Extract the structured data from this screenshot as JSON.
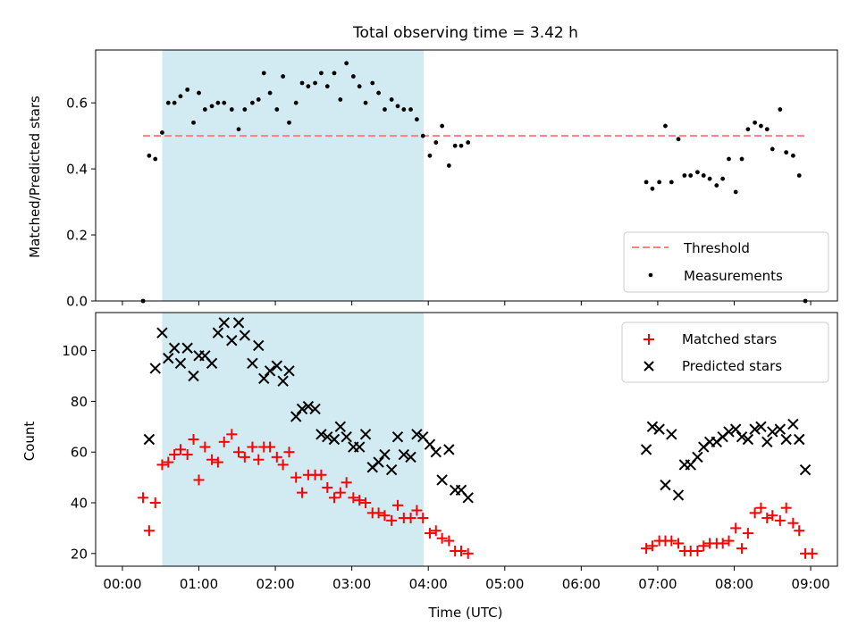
{
  "chart_data": [
    {
      "type": "scatter",
      "title": "Total observing time = 3.42 h",
      "xlabel": "",
      "ylabel": "Matched/Predicted stars",
      "xlim_hours": [
        -0.35,
        9.35
      ],
      "ylim": [
        0,
        0.76
      ],
      "yticks": [
        0.0,
        0.2,
        0.4,
        0.6
      ],
      "ytick_labels": [
        "0.0",
        "0.2",
        "0.4",
        "0.6"
      ],
      "shaded_span_hours": [
        0.52,
        3.94
      ],
      "threshold": {
        "name": "Threshold",
        "y": 0.5,
        "x_range_hours": [
          0.27,
          8.95
        ],
        "color": "#ff7f7f"
      },
      "legend": {
        "position": "lower right",
        "entries": [
          "Threshold",
          "Measurements"
        ]
      },
      "series": [
        {
          "name": "Measurements",
          "color": "#000000",
          "points": [
            [
              0.27,
              0.0
            ],
            [
              0.35,
              0.44
            ],
            [
              0.43,
              0.43
            ],
            [
              0.52,
              0.51
            ],
            [
              0.6,
              0.6
            ],
            [
              0.68,
              0.6
            ],
            [
              0.76,
              0.62
            ],
            [
              0.85,
              0.64
            ],
            [
              0.93,
              0.54
            ],
            [
              1.0,
              0.63
            ],
            [
              1.08,
              0.58
            ],
            [
              1.17,
              0.59
            ],
            [
              1.25,
              0.6
            ],
            [
              1.33,
              0.6
            ],
            [
              1.43,
              0.58
            ],
            [
              1.52,
              0.52
            ],
            [
              1.6,
              0.58
            ],
            [
              1.7,
              0.6
            ],
            [
              1.78,
              0.61
            ],
            [
              1.85,
              0.69
            ],
            [
              1.93,
              0.63
            ],
            [
              2.02,
              0.58
            ],
            [
              2.1,
              0.68
            ],
            [
              2.18,
              0.54
            ],
            [
              2.27,
              0.6
            ],
            [
              2.35,
              0.66
            ],
            [
              2.43,
              0.65
            ],
            [
              2.52,
              0.66
            ],
            [
              2.6,
              0.69
            ],
            [
              2.68,
              0.65
            ],
            [
              2.77,
              0.69
            ],
            [
              2.85,
              0.61
            ],
            [
              2.93,
              0.72
            ],
            [
              3.02,
              0.68
            ],
            [
              3.1,
              0.65
            ],
            [
              3.18,
              0.6
            ],
            [
              3.27,
              0.66
            ],
            [
              3.35,
              0.63
            ],
            [
              3.43,
              0.58
            ],
            [
              3.52,
              0.61
            ],
            [
              3.6,
              0.59
            ],
            [
              3.68,
              0.58
            ],
            [
              3.77,
              0.58
            ],
            [
              3.85,
              0.55
            ],
            [
              3.93,
              0.5
            ],
            [
              4.02,
              0.44
            ],
            [
              4.1,
              0.48
            ],
            [
              4.18,
              0.53
            ],
            [
              4.27,
              0.41
            ],
            [
              4.35,
              0.47
            ],
            [
              4.43,
              0.47
            ],
            [
              4.52,
              0.48
            ],
            [
              6.85,
              0.36
            ],
            [
              6.93,
              0.34
            ],
            [
              7.02,
              0.36
            ],
            [
              7.1,
              0.53
            ],
            [
              7.18,
              0.36
            ],
            [
              7.27,
              0.49
            ],
            [
              7.35,
              0.38
            ],
            [
              7.43,
              0.38
            ],
            [
              7.52,
              0.39
            ],
            [
              7.6,
              0.38
            ],
            [
              7.68,
              0.37
            ],
            [
              7.77,
              0.35
            ],
            [
              7.85,
              0.37
            ],
            [
              7.93,
              0.43
            ],
            [
              8.02,
              0.33
            ],
            [
              8.1,
              0.43
            ],
            [
              8.18,
              0.52
            ],
            [
              8.27,
              0.54
            ],
            [
              8.35,
              0.53
            ],
            [
              8.43,
              0.52
            ],
            [
              8.5,
              0.46
            ],
            [
              8.6,
              0.58
            ],
            [
              8.68,
              0.45
            ],
            [
              8.77,
              0.44
            ],
            [
              8.85,
              0.38
            ],
            [
              8.93,
              0.0
            ]
          ]
        }
      ]
    },
    {
      "type": "scatter",
      "title": "",
      "xlabel": "Time (UTC)",
      "ylabel": "Count",
      "xlim_hours": [
        -0.35,
        9.35
      ],
      "ylim": [
        15,
        115
      ],
      "yticks": [
        20,
        40,
        60,
        80,
        100
      ],
      "ytick_labels": [
        "20",
        "40",
        "60",
        "80",
        "100"
      ],
      "xticks_hours": [
        0,
        1,
        2,
        3,
        4,
        5,
        6,
        7,
        8,
        9
      ],
      "xtick_labels": [
        "00:00",
        "01:00",
        "02:00",
        "03:00",
        "04:00",
        "05:00",
        "06:00",
        "07:00",
        "08:00",
        "09:00"
      ],
      "shaded_span_hours": [
        0.52,
        3.94
      ],
      "legend": {
        "position": "upper right",
        "entries": [
          "Matched stars",
          "Predicted stars"
        ]
      },
      "series": [
        {
          "name": "Matched stars",
          "marker": "plus",
          "color": "#ff0000",
          "points": [
            [
              0.27,
              42
            ],
            [
              0.35,
              29
            ],
            [
              0.43,
              40
            ],
            [
              0.52,
              55
            ],
            [
              0.6,
              56
            ],
            [
              0.68,
              59
            ],
            [
              0.76,
              61
            ],
            [
              0.85,
              59
            ],
            [
              0.93,
              65
            ],
            [
              1.0,
              49
            ],
            [
              1.08,
              62
            ],
            [
              1.17,
              57
            ],
            [
              1.25,
              56
            ],
            [
              1.33,
              64
            ],
            [
              1.43,
              67
            ],
            [
              1.52,
              60
            ],
            [
              1.6,
              58
            ],
            [
              1.7,
              62
            ],
            [
              1.78,
              57
            ],
            [
              1.85,
              62
            ],
            [
              1.93,
              62
            ],
            [
              2.02,
              58
            ],
            [
              2.1,
              55
            ],
            [
              2.18,
              60
            ],
            [
              2.27,
              50
            ],
            [
              2.35,
              44
            ],
            [
              2.43,
              51
            ],
            [
              2.52,
              51
            ],
            [
              2.6,
              51
            ],
            [
              2.68,
              46
            ],
            [
              2.77,
              42
            ],
            [
              2.85,
              44
            ],
            [
              2.93,
              48
            ],
            [
              3.02,
              42
            ],
            [
              3.1,
              41
            ],
            [
              3.18,
              40
            ],
            [
              3.27,
              36
            ],
            [
              3.35,
              36
            ],
            [
              3.43,
              35
            ],
            [
              3.52,
              33
            ],
            [
              3.6,
              39
            ],
            [
              3.68,
              34
            ],
            [
              3.77,
              34
            ],
            [
              3.85,
              37
            ],
            [
              3.93,
              34
            ],
            [
              4.02,
              28
            ],
            [
              4.1,
              29
            ],
            [
              4.18,
              26
            ],
            [
              4.27,
              25
            ],
            [
              4.35,
              21
            ],
            [
              4.43,
              21
            ],
            [
              4.52,
              20
            ],
            [
              6.85,
              22
            ],
            [
              6.93,
              23
            ],
            [
              7.02,
              25
            ],
            [
              7.1,
              25
            ],
            [
              7.18,
              25
            ],
            [
              7.27,
              24
            ],
            [
              7.35,
              21
            ],
            [
              7.43,
              21
            ],
            [
              7.52,
              21
            ],
            [
              7.6,
              23
            ],
            [
              7.68,
              24
            ],
            [
              7.77,
              24
            ],
            [
              7.85,
              24
            ],
            [
              7.93,
              25
            ],
            [
              8.02,
              30
            ],
            [
              8.1,
              22
            ],
            [
              8.18,
              28
            ],
            [
              8.27,
              36
            ],
            [
              8.35,
              38
            ],
            [
              8.43,
              34
            ],
            [
              8.5,
              35
            ],
            [
              8.6,
              33
            ],
            [
              8.68,
              38
            ],
            [
              8.77,
              32
            ],
            [
              8.85,
              29
            ],
            [
              8.93,
              20
            ],
            [
              9.02,
              20
            ]
          ]
        },
        {
          "name": "Predicted stars",
          "marker": "x",
          "color": "#000000",
          "points": [
            [
              0.35,
              65
            ],
            [
              0.43,
              93
            ],
            [
              0.52,
              107
            ],
            [
              0.6,
              97
            ],
            [
              0.68,
              101
            ],
            [
              0.76,
              95
            ],
            [
              0.85,
              101
            ],
            [
              0.93,
              90
            ],
            [
              1.0,
              98
            ],
            [
              1.08,
              98
            ],
            [
              1.17,
              95
            ],
            [
              1.25,
              107
            ],
            [
              1.33,
              111
            ],
            [
              1.43,
              104
            ],
            [
              1.52,
              111
            ],
            [
              1.6,
              106
            ],
            [
              1.7,
              95
            ],
            [
              1.78,
              102
            ],
            [
              1.85,
              89
            ],
            [
              1.93,
              92
            ],
            [
              2.02,
              94
            ],
            [
              2.1,
              88
            ],
            [
              2.18,
              92
            ],
            [
              2.27,
              74
            ],
            [
              2.35,
              77
            ],
            [
              2.43,
              78
            ],
            [
              2.52,
              77
            ],
            [
              2.6,
              67
            ],
            [
              2.68,
              66
            ],
            [
              2.77,
              65
            ],
            [
              2.85,
              70
            ],
            [
              2.93,
              66
            ],
            [
              3.02,
              62
            ],
            [
              3.1,
              62
            ],
            [
              3.18,
              67
            ],
            [
              3.27,
              54
            ],
            [
              3.35,
              56
            ],
            [
              3.43,
              59
            ],
            [
              3.52,
              53
            ],
            [
              3.6,
              66
            ],
            [
              3.68,
              59
            ],
            [
              3.77,
              58
            ],
            [
              3.85,
              67
            ],
            [
              3.93,
              66
            ],
            [
              4.02,
              63
            ],
            [
              4.1,
              60
            ],
            [
              4.18,
              49
            ],
            [
              4.27,
              61
            ],
            [
              4.35,
              45
            ],
            [
              4.43,
              45
            ],
            [
              4.52,
              42
            ],
            [
              6.85,
              61
            ],
            [
              6.93,
              70
            ],
            [
              7.02,
              69
            ],
            [
              7.1,
              47
            ],
            [
              7.18,
              67
            ],
            [
              7.27,
              43
            ],
            [
              7.35,
              55
            ],
            [
              7.43,
              55
            ],
            [
              7.52,
              58
            ],
            [
              7.6,
              62
            ],
            [
              7.68,
              64
            ],
            [
              7.77,
              64
            ],
            [
              7.85,
              66
            ],
            [
              7.93,
              68
            ],
            [
              8.02,
              69
            ],
            [
              8.1,
              66
            ],
            [
              8.18,
              65
            ],
            [
              8.27,
              69
            ],
            [
              8.35,
              70
            ],
            [
              8.43,
              64
            ],
            [
              8.5,
              68
            ],
            [
              8.6,
              69
            ],
            [
              8.68,
              65
            ],
            [
              8.77,
              71
            ],
            [
              8.85,
              65
            ],
            [
              8.93,
              53
            ]
          ]
        }
      ]
    }
  ],
  "style": {
    "shade_color": "#add8e6",
    "threshold_color": "#ff7f7f",
    "matched_color": "#ff0000",
    "predicted_color": "#000000"
  }
}
